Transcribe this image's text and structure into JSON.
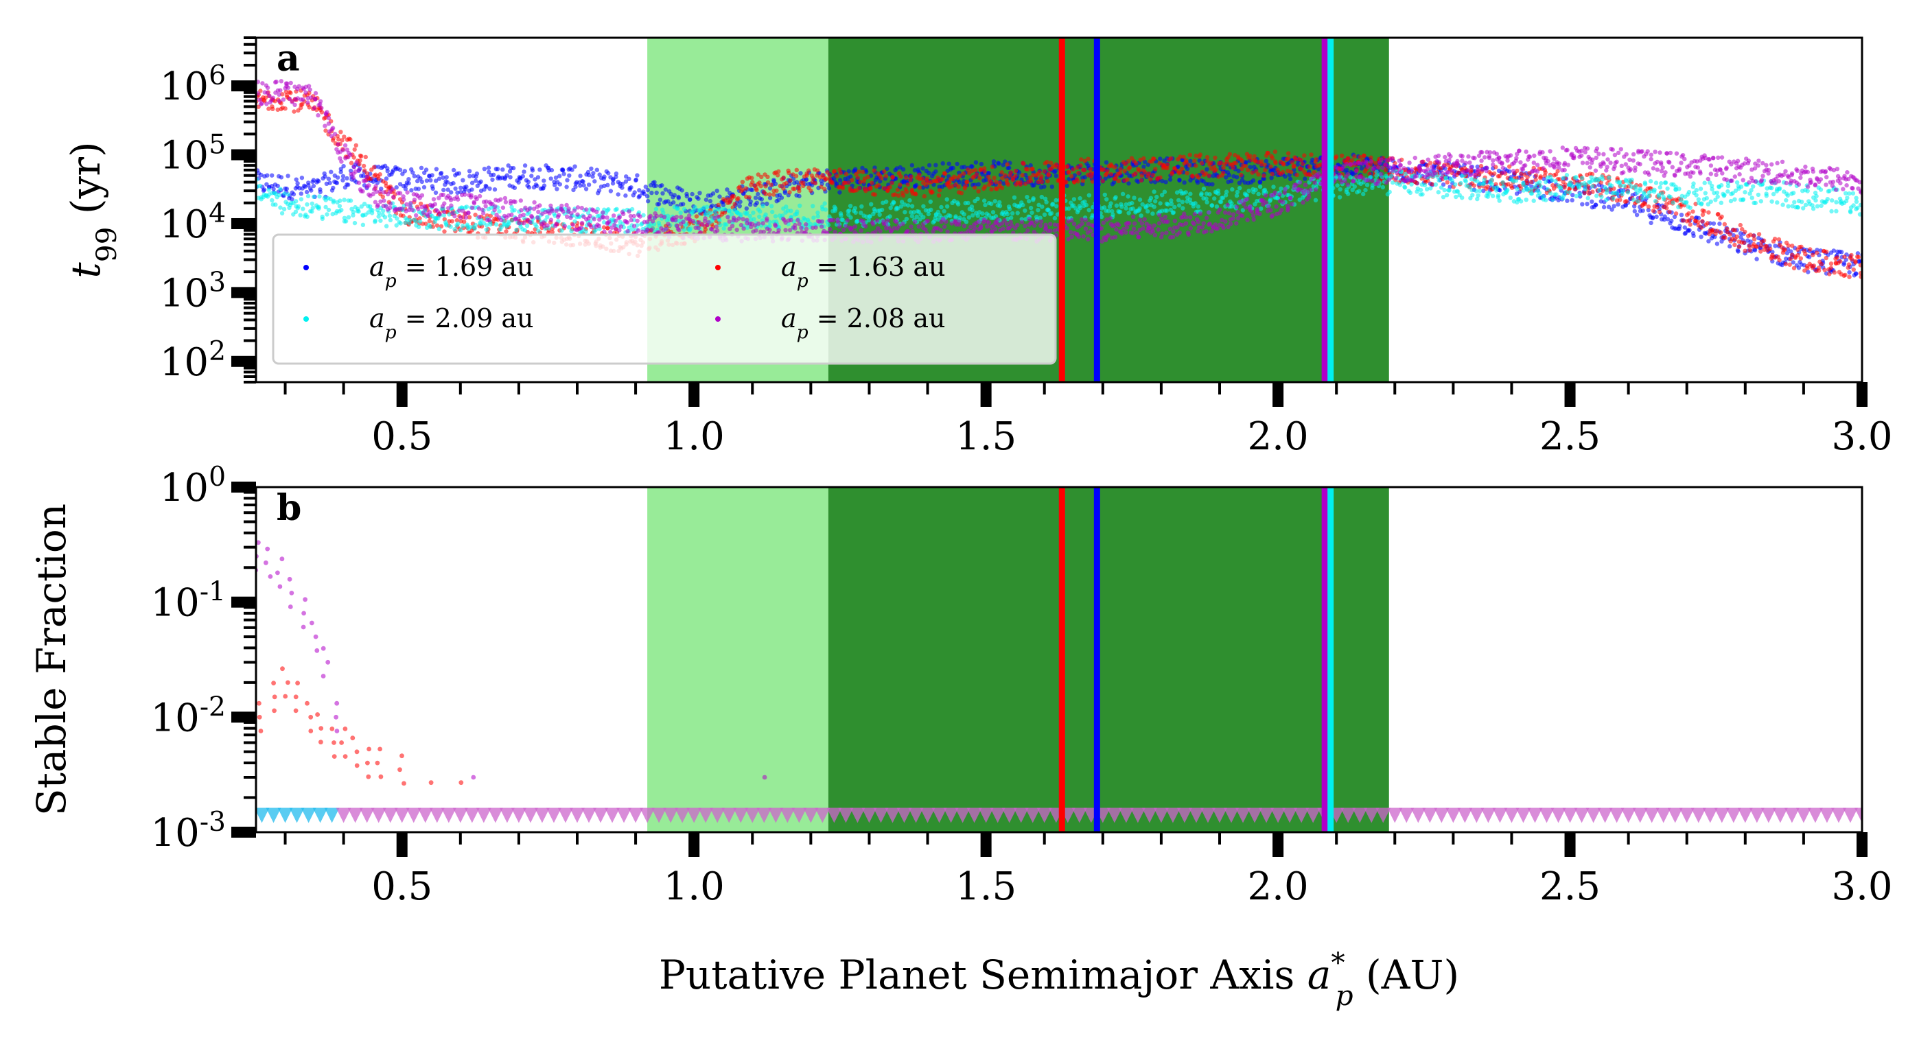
{
  "colors": {
    "light_zone": "#98eb98",
    "dark_zone": "#2f8f2f",
    "series_blue": "#0000ff",
    "series_cyan": "#00f0f0",
    "series_red": "#ff0000",
    "series_magenta": "#b000c8",
    "marker_floor_cyan": "#22bbee",
    "marker_floor_magenta": "#cc66cc"
  },
  "chart_data": [
    {
      "type": "scatter",
      "panel_tag": "a",
      "xlabel": "",
      "ylabel": "t99 (yr)",
      "yscale": "log",
      "xlim": [
        0.25,
        3.0
      ],
      "ylim": [
        50,
        5000000
      ],
      "x_ticks": [
        "0.5",
        "1.0",
        "1.5",
        "2.0",
        "2.5",
        "3.0"
      ],
      "y_ticks": [
        "10^2",
        "10^3",
        "10^4",
        "10^5",
        "10^6"
      ],
      "shaded_regions": [
        {
          "x0": 0.92,
          "x1": 1.23,
          "shade": "light"
        },
        {
          "x0": 1.23,
          "x1": 2.19,
          "shade": "dark"
        }
      ],
      "vertical_lines": [
        {
          "x": 1.63,
          "color": "#ff0000"
        },
        {
          "x": 1.69,
          "color": "#0000ff"
        },
        {
          "x": 2.08,
          "color": "#b000c8"
        },
        {
          "x": 2.09,
          "color": "#00f0f0"
        }
      ],
      "legend": {
        "placement": "lower-left",
        "entries": [
          {
            "label": "a_p = 1.69 au",
            "color": "#0000ff"
          },
          {
            "label": "a_p = 1.63 au",
            "color": "#ff0000"
          },
          {
            "label": "a_p = 2.09 au",
            "color": "#00f0f0"
          },
          {
            "label": "a_p = 2.08 au",
            "color": "#b000c8"
          }
        ]
      },
      "series": [
        {
          "name": "a_p = 1.69 au",
          "color": "#0000ff",
          "x": [
            0.25,
            0.3,
            0.35,
            0.4,
            0.5,
            0.6,
            0.7,
            0.8,
            0.9,
            1.0,
            1.1,
            1.2,
            1.3,
            1.4,
            1.5,
            1.6,
            1.7,
            1.8,
            1.9,
            2.0,
            2.1,
            2.2,
            2.3,
            2.4,
            2.5,
            2.6,
            2.7,
            2.8,
            2.9,
            3.0
          ],
          "y": [
            40000,
            35000,
            30000,
            50000,
            45000,
            40000,
            50000,
            45000,
            35000,
            20000,
            25000,
            40000,
            45000,
            50000,
            55000,
            50000,
            55000,
            60000,
            55000,
            60000,
            70000,
            60000,
            50000,
            40000,
            30000,
            20000,
            10000,
            5000,
            3000,
            2500
          ]
        },
        {
          "name": "a_p = 1.63 au",
          "color": "#ff0000",
          "x": [
            0.25,
            0.3,
            0.35,
            0.4,
            0.45,
            0.5,
            0.6,
            0.7,
            0.8,
            0.9,
            1.0,
            1.1,
            1.2,
            1.3,
            1.4,
            1.5,
            1.6,
            1.7,
            1.8,
            1.9,
            2.0,
            2.1,
            2.2,
            2.3,
            2.4,
            2.5,
            2.6,
            2.7,
            2.8,
            2.9,
            3.0
          ],
          "y": [
            600000,
            700000,
            500000,
            150000,
            50000,
            15000,
            10000,
            8000,
            7000,
            5000,
            8000,
            35000,
            45000,
            40000,
            35000,
            45000,
            55000,
            60000,
            65000,
            70000,
            75000,
            70000,
            60000,
            50000,
            45000,
            40000,
            30000,
            15000,
            6000,
            3000,
            2300
          ]
        },
        {
          "name": "a_p = 2.09 au",
          "color": "#00f0f0",
          "x": [
            0.25,
            0.3,
            0.4,
            0.5,
            0.6,
            0.7,
            0.8,
            0.9,
            1.0,
            1.1,
            1.2,
            1.3,
            1.4,
            1.5,
            1.6,
            1.7,
            1.8,
            1.9,
            2.0,
            2.1,
            2.2,
            2.3,
            2.4,
            2.5,
            2.6,
            2.7,
            2.8,
            2.9,
            3.0
          ],
          "y": [
            30000,
            20000,
            15000,
            13000,
            12000,
            12000,
            11000,
            11000,
            12000,
            12000,
            13000,
            14000,
            15000,
            16000,
            17000,
            18000,
            20000,
            22000,
            25000,
            35000,
            40000,
            35000,
            30000,
            35000,
            30000,
            25000,
            30000,
            25000,
            20000
          ]
        },
        {
          "name": "a_p = 2.08 au",
          "color": "#b000c8",
          "x": [
            0.25,
            0.3,
            0.35,
            0.4,
            0.45,
            0.5,
            0.6,
            0.7,
            0.8,
            0.9,
            1.0,
            1.1,
            1.2,
            1.3,
            1.4,
            1.5,
            1.6,
            1.7,
            1.8,
            1.9,
            2.0,
            2.1,
            2.2,
            2.3,
            2.4,
            2.5,
            2.6,
            2.7,
            2.8,
            2.9,
            3.0
          ],
          "y": [
            800000,
            800000,
            700000,
            100000,
            25000,
            20000,
            18000,
            15000,
            12000,
            10000,
            9000,
            8000,
            8000,
            8000,
            8000,
            8000,
            8000,
            8000,
            9000,
            12000,
            20000,
            50000,
            60000,
            70000,
            80000,
            90000,
            80000,
            70000,
            60000,
            50000,
            40000
          ]
        }
      ]
    },
    {
      "type": "scatter",
      "panel_tag": "b",
      "xlabel": "Putative Planet Semimajor Axis a*p (AU)",
      "ylabel": "Stable Fraction",
      "yscale": "log",
      "xlim": [
        0.25,
        3.0
      ],
      "ylim": [
        0.001,
        1
      ],
      "x_ticks": [
        "0.5",
        "1.0",
        "1.5",
        "2.0",
        "2.5",
        "3.0"
      ],
      "y_ticks": [
        "10^-3",
        "10^-2",
        "10^-1",
        "10^0"
      ],
      "shaded_regions": [
        {
          "x0": 0.92,
          "x1": 1.23,
          "shade": "light"
        },
        {
          "x0": 1.23,
          "x1": 2.19,
          "shade": "dark"
        }
      ],
      "vertical_lines": [
        {
          "x": 1.63,
          "color": "#ff0000"
        },
        {
          "x": 1.69,
          "color": "#0000ff"
        },
        {
          "x": 2.08,
          "color": "#b000c8"
        },
        {
          "x": 2.09,
          "color": "#00f0f0"
        }
      ],
      "floor_markers": {
        "shape": "triangle-down",
        "y": 0.0014,
        "x_start": 0.26,
        "x_end": 3.0,
        "step": 0.02
      },
      "series": [
        {
          "name": "a_p = 2.08 au",
          "color": "#b000c8",
          "x": [
            0.25,
            0.27,
            0.29,
            0.31,
            0.33,
            0.35,
            0.37,
            0.39,
            0.62,
            1.12
          ],
          "y": [
            0.25,
            0.22,
            0.18,
            0.12,
            0.08,
            0.05,
            0.03,
            0.01,
            0.003,
            0.003
          ]
        },
        {
          "name": "a_p = 1.63 au",
          "color": "#ff0000",
          "x": [
            0.26,
            0.28,
            0.3,
            0.32,
            0.34,
            0.36,
            0.38,
            0.4,
            0.42,
            0.44,
            0.46,
            0.5,
            0.55,
            0.6
          ],
          "y": [
            0.01,
            0.015,
            0.02,
            0.015,
            0.01,
            0.008,
            0.006,
            0.006,
            0.005,
            0.004,
            0.004,
            0.0035,
            0.0027,
            0.0027
          ]
        }
      ]
    }
  ]
}
